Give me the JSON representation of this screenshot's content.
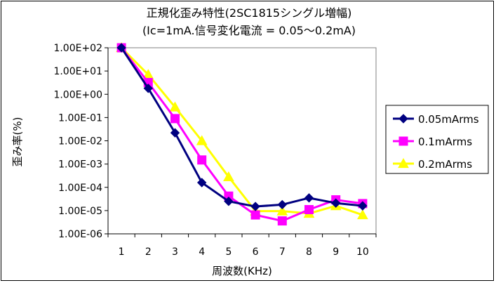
{
  "chart_data": {
    "type": "line",
    "title": "正規化歪み特性(2SC1815シングル増幅)",
    "subtitle": "(Ic=1mA.信号変化電流 = 0.05～0.2mA)",
    "xlabel": "周波数(KHz)",
    "ylabel": "歪み率(%)",
    "yscale": "log",
    "ylim": [
      1e-06,
      100
    ],
    "categories": [
      "1",
      "2",
      "3",
      "4",
      "5",
      "6",
      "7",
      "8",
      "9",
      "10"
    ],
    "y_tick_labels": [
      "1.00E+02",
      "1.00E+01",
      "1.00E+00",
      "1.00E-01",
      "1.00E-02",
      "1.00E-03",
      "1.00E-04",
      "1.00E-05",
      "1.00E-06"
    ],
    "grid": false,
    "legend_position": "right",
    "series": [
      {
        "name": "0.05mArms",
        "color": "#000080",
        "marker": "diamond",
        "values": [
          100,
          1.8,
          0.022,
          0.00016,
          2.5e-05,
          1.5e-05,
          1.8e-05,
          3.5e-05,
          2.1e-05,
          1.6e-05
        ]
      },
      {
        "name": "0.1mArms",
        "color": "#ff00ff",
        "marker": "square",
        "values": [
          100,
          3.2,
          0.09,
          0.0015,
          4.2e-05,
          6.5e-06,
          3.6e-06,
          1.1e-05,
          2.9e-05,
          2e-05
        ]
      },
      {
        "name": "0.2mArms",
        "color": "#ffff00",
        "marker": "triangle",
        "values": [
          100,
          7,
          0.28,
          0.01,
          0.00028,
          9.5e-06,
          9.5e-06,
          7.5e-06,
          1.6e-05,
          6.5e-06
        ]
      }
    ]
  }
}
